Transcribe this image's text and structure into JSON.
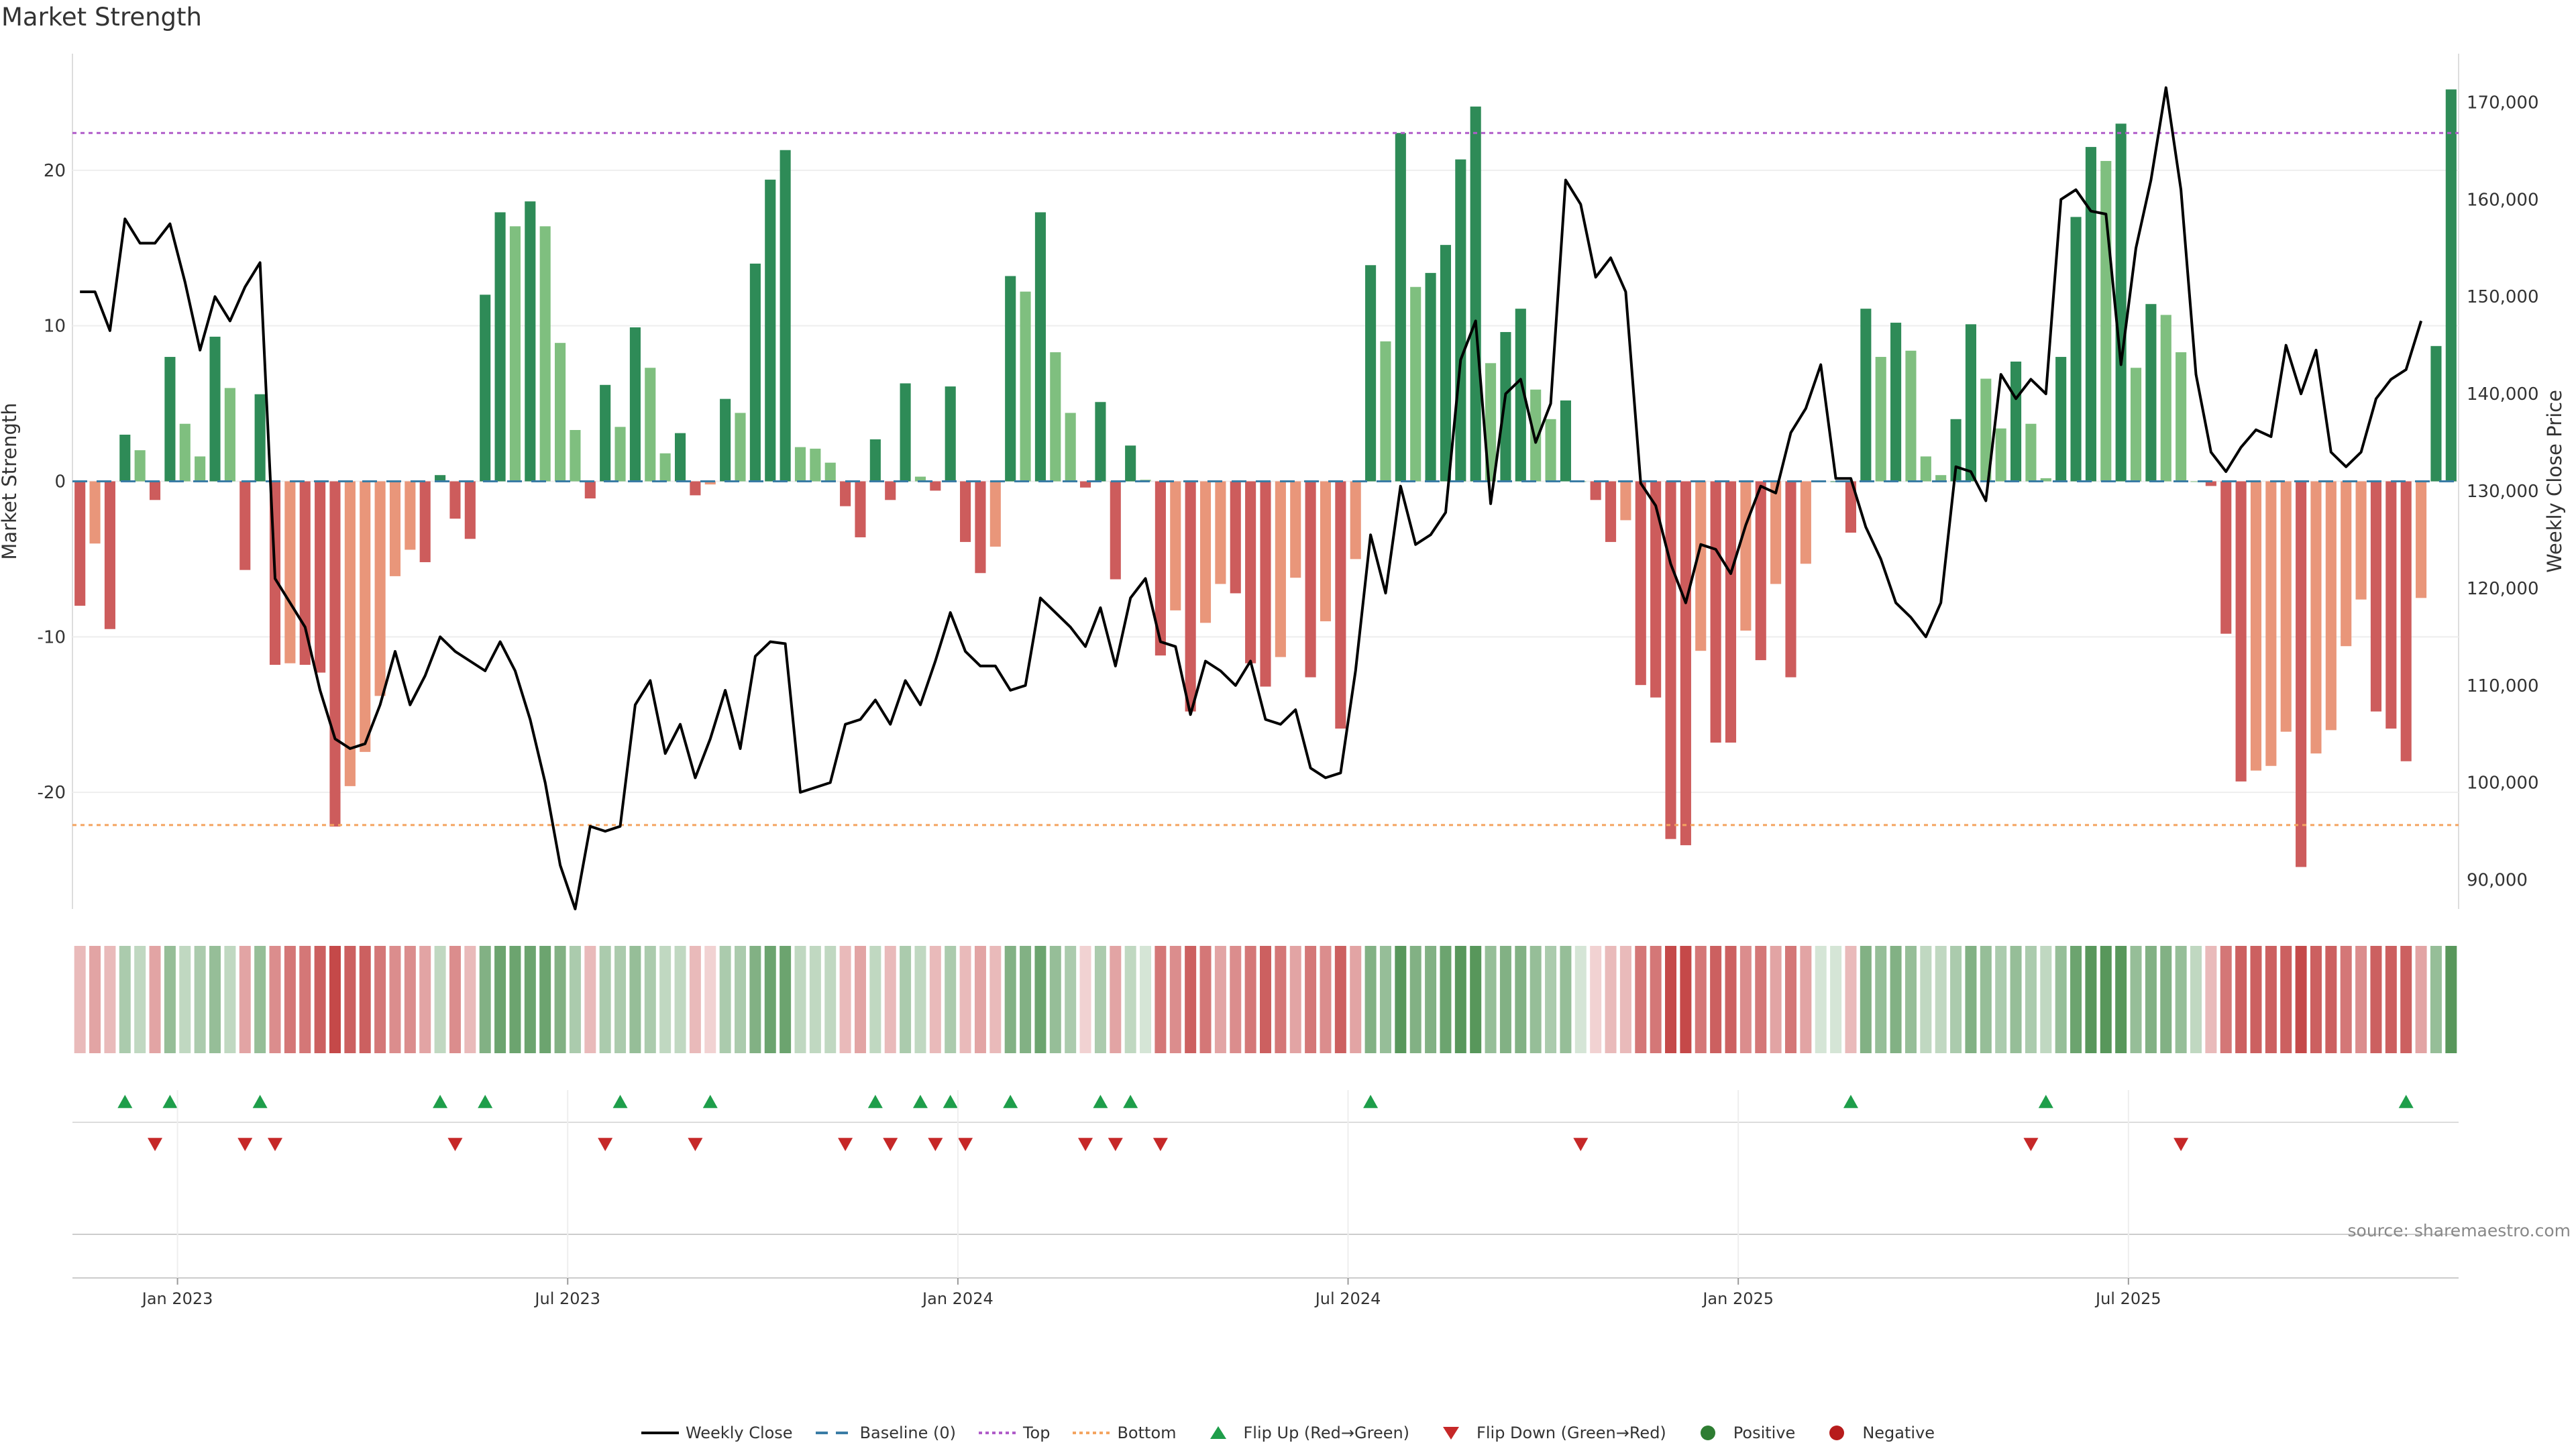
{
  "chart_data": {
    "type": "bar",
    "title": "Market Strength",
    "ylabel": "Market Strength",
    "y2label": "Weekly Close Price",
    "ylim": [
      -27.5,
      27.5
    ],
    "y2lim": [
      87000,
      175000
    ],
    "yticks": [
      "20",
      "10",
      "0",
      "-10",
      "-20"
    ],
    "y2ticks": [
      "170,000",
      "160,000",
      "150,000",
      "140,000",
      "130,000",
      "120,000",
      "110,000",
      "100,000",
      "90,000"
    ],
    "xticks": [
      "Jan 2023",
      "Jul 2023",
      "Jan 2024",
      "Jul 2024",
      "Jan 2025",
      "Jul 2025"
    ],
    "baseline": 0,
    "top_line": 22.4,
    "bottom_line": -22.1,
    "strength": [
      -8,
      -4,
      -9.5,
      3,
      2,
      -1.2,
      8,
      3.7,
      1.6,
      9.3,
      6,
      -5.7,
      5.6,
      -11.8,
      -11.7,
      -11.8,
      -12.3,
      -22.2,
      -19.6,
      -17.4,
      -13.8,
      -6.1,
      -4.4,
      -5.2,
      0.4,
      -2.4,
      -3.7,
      12,
      17.3,
      16.4,
      18,
      16.4,
      8.9,
      3.3,
      -1.1,
      6.2,
      3.5,
      9.9,
      7.3,
      1.8,
      3.1,
      -0.9,
      -0.2,
      5.3,
      4.4,
      14,
      19.4,
      21.3,
      2.2,
      2.1,
      1.2,
      -1.6,
      -3.6,
      2.7,
      -1.2,
      6.3,
      0.3,
      -0.6,
      6.1,
      -3.9,
      -5.9,
      -4.2,
      13.2,
      12.2,
      17.3,
      8.3,
      4.4,
      -0.4,
      5.1,
      -6.3,
      2.3,
      0.1,
      -11.2,
      -8.3,
      -14.8,
      -9.1,
      -6.6,
      -7.2,
      -11.7,
      -13.2,
      -11.3,
      -6.2,
      -12.6,
      -9,
      -15.9,
      -5,
      13.9,
      9,
      22.4,
      12.5,
      13.4,
      15.2,
      20.7,
      24.1,
      7.6,
      9.6,
      11.1,
      5.9,
      4,
      5.2,
      0,
      -1.2,
      -3.9,
      -2.5,
      -13.1,
      -13.9,
      -23,
      -23.4,
      -10.9,
      -16.8,
      -16.8,
      -9.6,
      -11.5,
      -6.6,
      -12.6,
      -5.3,
      0,
      0,
      -3.3,
      11.1,
      8,
      10.2,
      8.4,
      1.6,
      0.4,
      4,
      10.1,
      6.6,
      3.4,
      7.7,
      3.7,
      0.2,
      8,
      17,
      21.5,
      20.6,
      23,
      7.3,
      11.4,
      10.7,
      8.3,
      0,
      -0.3,
      -9.8,
      -19.3,
      -18.6,
      -18.3,
      -16.1,
      -24.8,
      -17.5,
      -16,
      -10.6,
      -7.6,
      -14.8,
      -15.9,
      -18,
      -7.5,
      8.7,
      25.2
    ],
    "weekly_close": [
      150500,
      150500,
      146500,
      158000,
      155500,
      155500,
      157500,
      151500,
      144500,
      150000,
      147500,
      151000,
      153500,
      121000,
      118500,
      116000,
      109500,
      104500,
      103500,
      104000,
      108000,
      113500,
      108000,
      111000,
      115000,
      113500,
      112500,
      111500,
      114500,
      111500,
      106500,
      100000,
      91500,
      87000,
      95500,
      95000,
      95500,
      108000,
      110500,
      103000,
      106000,
      100500,
      104500,
      109500,
      103500,
      113000,
      114500,
      114300,
      99000,
      99500,
      100000,
      106000,
      106500,
      108500,
      106000,
      110500,
      108000,
      112500,
      117500,
      113500,
      112000,
      112000,
      109500,
      110000,
      119000,
      117500,
      116000,
      114000,
      118000,
      112000,
      119000,
      121000,
      114500,
      114000,
      107000,
      112500,
      111500,
      110000,
      112500,
      106500,
      106000,
      107500,
      101500,
      100500,
      101000,
      111500,
      125500,
      119500,
      130500,
      124500,
      125500,
      127800,
      143500,
      147500,
      128700,
      140000,
      141500,
      135000,
      139000,
      162000,
      159500,
      152000,
      154000,
      150500,
      130800,
      128500,
      122500,
      118500,
      124500,
      124000,
      121500,
      126500,
      130500,
      129800,
      136000,
      138500,
      143000,
      131300,
      131300,
      126300,
      123000,
      118500,
      117000,
      115000,
      118500,
      132500,
      132000,
      129000,
      142000,
      139500,
      141500,
      140000,
      160000,
      161000,
      158800,
      158500,
      143000,
      155000,
      162000,
      171500,
      161000,
      142000,
      134000,
      132000,
      134500,
      136300,
      135600,
      145000,
      140000,
      144500,
      134000,
      132500,
      134000,
      139500,
      141500,
      142500,
      147500
    ],
    "breadth": [
      0.3,
      0.4,
      0.3,
      0.4,
      0.3,
      0.4,
      0.5,
      0.3,
      0.4,
      0.5,
      0.3,
      0.4,
      0.5,
      0.5,
      0.6,
      0.6,
      0.7,
      0.8,
      0.7,
      0.7,
      0.6,
      0.5,
      0.5,
      0.4,
      0.3,
      0.5,
      0.3,
      0.6,
      0.7,
      0.7,
      0.7,
      0.7,
      0.6,
      0.4,
      0.3,
      0.4,
      0.4,
      0.5,
      0.4,
      0.3,
      0.3,
      0.3,
      0.2,
      0.4,
      0.4,
      0.6,
      0.7,
      0.7,
      0.3,
      0.3,
      0.3,
      0.3,
      0.4,
      0.3,
      0.3,
      0.4,
      0.3,
      0.3,
      0.4,
      0.3,
      0.4,
      0.3,
      0.6,
      0.6,
      0.7,
      0.5,
      0.4,
      0.2,
      0.4,
      0.4,
      0.3,
      0.2,
      0.6,
      0.5,
      0.7,
      0.6,
      0.4,
      0.5,
      0.6,
      0.7,
      0.6,
      0.4,
      0.6,
      0.5,
      0.7,
      0.4,
      0.6,
      0.5,
      0.8,
      0.6,
      0.6,
      0.7,
      0.8,
      0.8,
      0.5,
      0.6,
      0.6,
      0.5,
      0.4,
      0.5,
      0.2,
      0.2,
      0.3,
      0.3,
      0.6,
      0.6,
      0.8,
      0.8,
      0.6,
      0.7,
      0.7,
      0.5,
      0.6,
      0.4,
      0.6,
      0.4,
      0.2,
      0.2,
      0.3,
      0.6,
      0.5,
      0.6,
      0.5,
      0.3,
      0.3,
      0.4,
      0.6,
      0.5,
      0.4,
      0.5,
      0.4,
      0.3,
      0.5,
      0.7,
      0.8,
      0.8,
      0.8,
      0.5,
      0.6,
      0.6,
      0.5,
      0.3,
      0.3,
      0.6,
      0.7,
      0.7,
      0.7,
      0.7,
      0.8,
      0.7,
      0.7,
      0.6,
      0.5,
      0.7,
      0.7,
      0.7,
      0.4,
      0.5,
      0.8
    ],
    "flip_up_weeks": [
      3,
      6,
      12,
      24,
      27,
      36,
      42,
      53,
      56,
      58,
      62,
      68,
      70,
      86,
      118,
      131,
      155
    ],
    "flip_down_weeks": [
      5,
      11,
      13,
      25,
      35,
      41,
      51,
      54,
      57,
      59,
      67,
      69,
      72,
      100,
      130,
      140
    ],
    "colors": {
      "pos_strong": "#2e8b57",
      "pos_light": "#7fbf7f",
      "neg_strong": "#cd5c5c",
      "neg_light": "#e9967a",
      "line": "#000000",
      "baseline": "#3a7ca5",
      "top": "#b05cc9",
      "bottom": "#f4a460",
      "flip_up": "#1e9e4a",
      "flip_down": "#c62828",
      "positive": "#2e7d32",
      "negative": "#b71c1c"
    },
    "legend_placement": "bottom-center",
    "legend": [
      {
        "label": "Weekly Close",
        "kind": "line"
      },
      {
        "label": "Baseline (0)",
        "kind": "dash"
      },
      {
        "label": "Top",
        "kind": "dot-top"
      },
      {
        "label": "Bottom",
        "kind": "dot-bottom"
      },
      {
        "label": "Flip Up (Red→Green)",
        "kind": "tri-up"
      },
      {
        "label": "Flip Down (Green→Red)",
        "kind": "tri-down"
      },
      {
        "label": "Positive",
        "kind": "dot-pos"
      },
      {
        "label": "Negative",
        "kind": "dot-neg"
      }
    ],
    "source": "source: sharemaestro.com"
  }
}
